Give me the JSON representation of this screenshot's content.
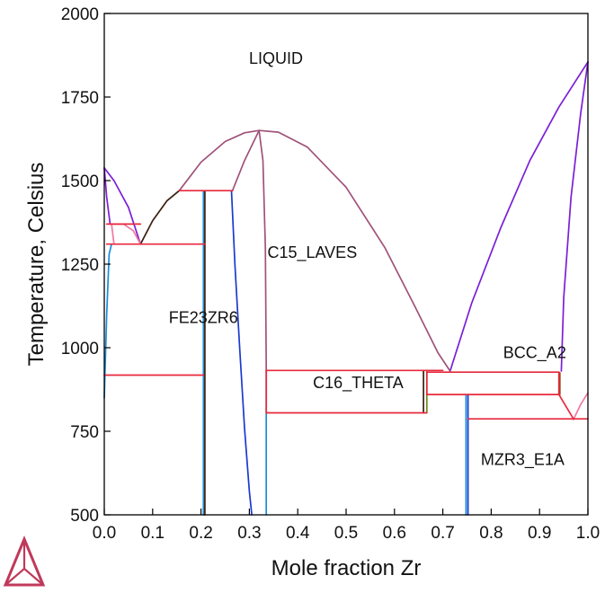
{
  "chart_data": {
    "type": "line",
    "xlabel": "Mole fraction Zr",
    "ylabel": "Temperature, Celsius",
    "xlim": [
      0.0,
      1.0
    ],
    "ylim": [
      500,
      2000
    ],
    "x_ticks": [
      0.0,
      0.1,
      0.2,
      0.3,
      0.4,
      0.5,
      0.6,
      0.7,
      0.8,
      0.9,
      1.0
    ],
    "x_tick_labels": [
      "0.0",
      "0.1",
      "0.2",
      "0.3",
      "0.4",
      "0.5",
      "0.6",
      "0.7",
      "0.8",
      "0.9",
      "1.0"
    ],
    "y_ticks": [
      500,
      750,
      1000,
      1250,
      1500,
      1750,
      2000
    ],
    "y_tick_labels": [
      "500",
      "750",
      "1000",
      "1250",
      "1500",
      "1750",
      "2000"
    ],
    "grid": false,
    "region_labels": [
      {
        "text": "LIQUID",
        "x": 0.355,
        "y": 1865
      },
      {
        "text": "C15_LAVES",
        "x": 0.43,
        "y": 1285
      },
      {
        "text": "FE23ZR6",
        "x": 0.205,
        "y": 1090
      },
      {
        "text": "BCC_A2",
        "x": 0.89,
        "y": 985
      },
      {
        "text": "C16_THETA",
        "x": 0.525,
        "y": 895
      },
      {
        "text": "MZR3_E1A",
        "x": 0.865,
        "y": 665
      }
    ],
    "series": [
      {
        "color": "#7b1fd8",
        "x": [
          0.0,
          0.02,
          0.05,
          0.075
        ],
        "y": [
          1538,
          1500,
          1420,
          1310
        ]
      },
      {
        "color": "#7b1fd8",
        "x": [
          0.715,
          0.76,
          0.82,
          0.88,
          0.94,
          1.0
        ],
        "y": [
          930,
          1135,
          1360,
          1560,
          1720,
          1855
        ]
      },
      {
        "color": "#7b1fd8",
        "x": [
          0.945,
          0.95,
          0.965,
          0.985,
          1.0
        ],
        "y": [
          930,
          1150,
          1450,
          1700,
          1855
        ]
      },
      {
        "color": "#7b1fd8",
        "x": [
          0.0,
          0.005,
          0.012
        ],
        "y": [
          1538,
          1450,
          1370
        ]
      },
      {
        "color": "#a0527a",
        "x": [
          0.155,
          0.2,
          0.25,
          0.29,
          0.32,
          0.36,
          0.42,
          0.5,
          0.58,
          0.64,
          0.69,
          0.715
        ],
        "y": [
          1470,
          1555,
          1617,
          1643,
          1650,
          1645,
          1600,
          1480,
          1300,
          1130,
          985,
          930
        ]
      },
      {
        "color": "#a0527a",
        "x": [
          0.265,
          0.29,
          0.32
        ],
        "y": [
          1470,
          1560,
          1650
        ]
      },
      {
        "color": "#a0527a",
        "x": [
          0.32,
          0.328,
          0.333,
          0.335
        ],
        "y": [
          1650,
          1560,
          1300,
          930
        ]
      },
      {
        "color": "#3a2010",
        "x": [
          0.075,
          0.1,
          0.13,
          0.155
        ],
        "y": [
          1310,
          1380,
          1440,
          1470
        ]
      },
      {
        "color": "#f07aa0",
        "x": [
          0.015,
          0.04,
          0.06,
          0.075
        ],
        "y": [
          1370,
          1370,
          1350,
          1310
        ]
      },
      {
        "color": "#f07aa0",
        "x": [
          0.015,
          0.02
        ],
        "y": [
          1370,
          1310
        ]
      },
      {
        "color": "#f07aa0",
        "x": [
          0.97,
          0.985,
          1.0
        ],
        "y": [
          785,
          830,
          865
        ]
      },
      {
        "color": "#1a8cd8",
        "x": [
          0.0,
          0.005,
          0.01,
          0.015
        ],
        "y": [
          850,
          1100,
          1280,
          1310
        ]
      },
      {
        "color": "#1a8cd8",
        "x": [
          0.205,
          0.205
        ],
        "y": [
          500,
          1470
        ]
      },
      {
        "color": "#1a8cd8",
        "x": [
          0.335,
          0.335
        ],
        "y": [
          500,
          930
        ]
      },
      {
        "color": "#1a8cd8",
        "x": [
          0.748,
          0.748
        ],
        "y": [
          500,
          860
        ]
      },
      {
        "color": "#1a3ad0",
        "x": [
          0.263,
          0.27,
          0.28,
          0.29,
          0.3,
          0.305
        ],
        "y": [
          1470,
          1250,
          1000,
          760,
          570,
          500
        ]
      },
      {
        "color": "#1a3ad0",
        "x": [
          0.752,
          0.752
        ],
        "y": [
          500,
          860
        ]
      },
      {
        "color": "#3a2010",
        "x": [
          0.208,
          0.208
        ],
        "y": [
          500,
          1470
        ]
      },
      {
        "color": "#3a2010",
        "x": [
          0.66,
          0.66
        ],
        "y": [
          805,
          930
        ]
      },
      {
        "color": "#6b8a1a",
        "x": [
          0.667,
          0.667
        ],
        "y": [
          805,
          930
        ]
      },
      {
        "color": "#8a4a1a",
        "x": [
          0.942,
          0.942
        ],
        "y": [
          925,
          860
        ]
      },
      {
        "color": "#e8283c",
        "x": [
          0.0,
          0.205
        ],
        "y": [
          918,
          918
        ]
      },
      {
        "color": "#e8283c",
        "x": [
          0.005,
          0.075
        ],
        "y": [
          1370,
          1370
        ]
      },
      {
        "color": "#e8283c",
        "x": [
          0.005,
          0.208
        ],
        "y": [
          1310,
          1310
        ]
      },
      {
        "color": "#e8283c",
        "x": [
          0.155,
          0.265
        ],
        "y": [
          1470,
          1470
        ]
      },
      {
        "color": "#e8283c",
        "x": [
          0.335,
          0.7
        ],
        "y": [
          932,
          932
        ]
      },
      {
        "color": "#e8283c",
        "x": [
          0.335,
          0.667
        ],
        "y": [
          805,
          805
        ]
      },
      {
        "color": "#e8283c",
        "x": [
          0.667,
          0.94
        ],
        "y": [
          927,
          927
        ]
      },
      {
        "color": "#e8283c",
        "x": [
          0.667,
          0.94
        ],
        "y": [
          860,
          860
        ]
      },
      {
        "color": "#e8283c",
        "x": [
          0.752,
          1.0
        ],
        "y": [
          787,
          787
        ]
      },
      {
        "color": "#e8283c",
        "x": [
          0.94,
          0.97
        ],
        "y": [
          860,
          787
        ]
      },
      {
        "color": "#e8283c",
        "x": [
          0.94,
          0.94
        ],
        "y": [
          927,
          860
        ]
      },
      {
        "color": "#e8283c",
        "x": [
          0.667,
          0.667
        ],
        "y": [
          927,
          860
        ]
      },
      {
        "color": "#e8283c",
        "x": [
          0.335,
          0.335
        ],
        "y": [
          932,
          805
        ]
      }
    ]
  },
  "logo": {
    "name": "triangle-logo-icon",
    "color": "#c0395a"
  }
}
